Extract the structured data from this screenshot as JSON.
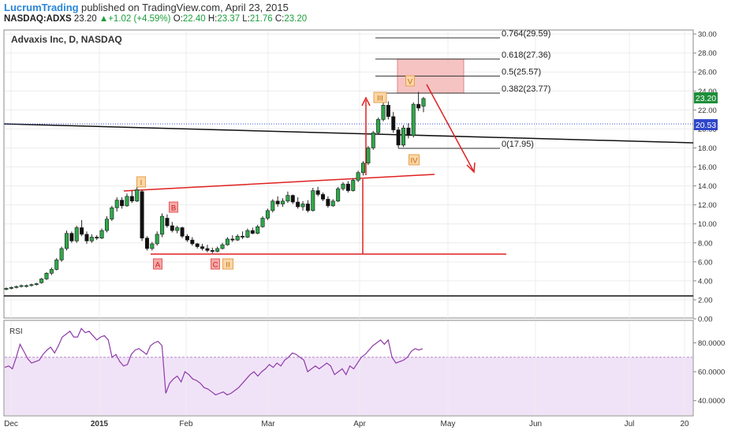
{
  "header": {
    "brand": "LucrumTrading",
    "published": "published on TradingView.com, April 23, 2015",
    "symbol": "NASDAQ:ADXS",
    "last": "23.20",
    "change": "+1.02 (+4.59%)",
    "open_label": "O:",
    "open": "22.40",
    "high_label": "H:",
    "high": "23.37",
    "low_label": "L:",
    "low": "21.76",
    "close_label": "C:",
    "close": "23.20"
  },
  "chart_data": {
    "type": "candlestick",
    "title": "Advaxis Inc, D, NASDAQ",
    "y_ticks": [
      "30.00",
      "28.00",
      "26.00",
      "24.00",
      "22.00",
      "20.00",
      "18.00",
      "16.00",
      "14.00",
      "12.00",
      "10.00",
      "8.00",
      "6.00",
      "4.00",
      "2.00",
      "0.00"
    ],
    "ylim": [
      0,
      30.5
    ],
    "x_ticks": [
      "Dec",
      "2015",
      "Feb",
      "Mar",
      "Apr",
      "May",
      "Jun",
      "Jul",
      "20"
    ],
    "last_price_label": "23.20",
    "hline_label": "20.53",
    "fib_levels": [
      {
        "label": "0.764(29.59)",
        "value": 29.59
      },
      {
        "label": "0.618(27.36)",
        "value": 27.36
      },
      {
        "label": "0.5(25.57)",
        "value": 25.57
      },
      {
        "label": "0.382(23.77)",
        "value": 23.77
      },
      {
        "label": "0(17.95)",
        "value": 17.95
      }
    ],
    "wave_labels": [
      "I",
      "II",
      "III",
      "IV",
      "V",
      "A",
      "B",
      "C"
    ],
    "candles": [
      [
        3.1,
        3.3,
        3.0,
        3.2
      ],
      [
        3.2,
        3.4,
        3.1,
        3.3
      ],
      [
        3.3,
        3.5,
        3.2,
        3.4
      ],
      [
        3.4,
        3.6,
        3.3,
        3.5
      ],
      [
        3.4,
        3.6,
        3.3,
        3.5
      ],
      [
        3.5,
        3.7,
        3.4,
        3.6
      ],
      [
        3.6,
        3.8,
        3.5,
        3.7
      ],
      [
        3.8,
        4.3,
        3.7,
        4.2
      ],
      [
        4.2,
        4.9,
        4.1,
        4.8
      ],
      [
        4.8,
        5.4,
        4.6,
        5.2
      ],
      [
        5.2,
        6.4,
        5.1,
        6.2
      ],
      [
        6.2,
        7.6,
        6.0,
        7.4
      ],
      [
        7.4,
        9.3,
        7.2,
        9.0
      ],
      [
        9.0,
        9.2,
        8.0,
        8.2
      ],
      [
        8.2,
        9.8,
        8.0,
        9.6
      ],
      [
        9.6,
        10.4,
        8.7,
        8.9
      ],
      [
        8.9,
        9.2,
        7.9,
        8.2
      ],
      [
        8.2,
        8.9,
        8.0,
        8.6
      ],
      [
        8.6,
        8.8,
        8.3,
        8.5
      ],
      [
        8.5,
        9.5,
        8.4,
        9.3
      ],
      [
        9.3,
        10.8,
        9.1,
        10.5
      ],
      [
        10.5,
        11.9,
        10.3,
        11.7
      ],
      [
        11.7,
        12.8,
        11.3,
        12.5
      ],
      [
        12.5,
        12.8,
        11.6,
        11.9
      ],
      [
        11.9,
        13.2,
        11.8,
        12.9
      ],
      [
        12.9,
        13.5,
        12.2,
        12.4
      ],
      [
        12.4,
        13.9,
        12.3,
        13.6
      ],
      [
        13.4,
        13.6,
        8.2,
        8.5
      ],
      [
        8.5,
        8.7,
        7.2,
        7.4
      ],
      [
        7.4,
        8.1,
        7.2,
        7.9
      ],
      [
        7.9,
        9.2,
        7.7,
        8.9
      ],
      [
        8.9,
        11.1,
        8.6,
        10.8
      ],
      [
        10.6,
        11.0,
        9.6,
        9.8
      ],
      [
        9.8,
        10.2,
        9.1,
        9.3
      ],
      [
        9.3,
        9.8,
        9.0,
        9.6
      ],
      [
        9.6,
        9.7,
        8.5,
        8.7
      ],
      [
        8.7,
        8.9,
        8.1,
        8.3
      ],
      [
        8.3,
        8.6,
        7.7,
        7.9
      ],
      [
        7.9,
        8.0,
        7.4,
        7.6
      ],
      [
        7.6,
        7.9,
        7.2,
        7.4
      ],
      [
        7.4,
        7.8,
        7.0,
        7.2
      ],
      [
        7.2,
        7.5,
        6.9,
        7.1
      ],
      [
        7.1,
        7.6,
        7.0,
        7.4
      ],
      [
        7.4,
        8.0,
        7.3,
        7.8
      ],
      [
        7.8,
        8.6,
        7.7,
        8.4
      ],
      [
        8.4,
        8.8,
        8.1,
        8.3
      ],
      [
        8.3,
        8.9,
        8.2,
        8.7
      ],
      [
        8.7,
        9.2,
        8.4,
        8.6
      ],
      [
        8.6,
        9.5,
        8.5,
        9.3
      ],
      [
        9.3,
        9.6,
        8.9,
        9.0
      ],
      [
        9.0,
        9.9,
        8.9,
        9.7
      ],
      [
        9.7,
        10.8,
        9.6,
        10.6
      ],
      [
        10.6,
        11.6,
        10.4,
        11.4
      ],
      [
        11.4,
        12.6,
        11.2,
        12.4
      ],
      [
        12.4,
        12.9,
        11.8,
        12.1
      ],
      [
        12.1,
        12.7,
        11.8,
        12.4
      ],
      [
        12.4,
        13.4,
        12.2,
        13.0
      ],
      [
        13.0,
        13.1,
        12.1,
        12.3
      ],
      [
        12.3,
        12.8,
        11.6,
        11.8
      ],
      [
        11.8,
        12.4,
        11.4,
        12.1
      ],
      [
        12.1,
        12.5,
        11.2,
        11.4
      ],
      [
        11.4,
        13.8,
        11.3,
        13.5
      ],
      [
        13.5,
        13.9,
        12.9,
        13.1
      ],
      [
        13.1,
        13.3,
        12.4,
        12.6
      ],
      [
        12.6,
        12.9,
        11.7,
        11.9
      ],
      [
        11.9,
        12.6,
        11.8,
        12.4
      ],
      [
        12.4,
        13.9,
        12.3,
        13.7
      ],
      [
        13.7,
        14.4,
        13.5,
        14.2
      ],
      [
        14.2,
        14.5,
        13.3,
        13.5
      ],
      [
        13.5,
        14.8,
        13.4,
        14.6
      ],
      [
        14.6,
        15.6,
        14.4,
        15.4
      ],
      [
        15.4,
        16.6,
        15.1,
        16.4
      ],
      [
        16.4,
        18.2,
        16.2,
        18.0
      ],
      [
        18.0,
        19.8,
        17.8,
        19.6
      ],
      [
        19.6,
        21.2,
        19.4,
        21.0
      ],
      [
        21.0,
        22.8,
        20.8,
        22.5
      ],
      [
        22.5,
        22.9,
        21.0,
        21.3
      ],
      [
        21.3,
        21.8,
        19.6,
        19.9
      ],
      [
        19.9,
        20.2,
        18.0,
        18.3
      ],
      [
        18.3,
        20.4,
        18.1,
        20.1
      ],
      [
        20.1,
        20.6,
        19.0,
        19.3
      ],
      [
        19.3,
        22.8,
        19.1,
        22.6
      ],
      [
        22.6,
        23.9,
        21.9,
        22.2
      ],
      [
        22.4,
        23.37,
        21.76,
        23.2
      ]
    ],
    "rsi": {
      "label": "RSI",
      "ticks": [
        "80.0000",
        "60.0000",
        "40.0000"
      ],
      "ylim": [
        30,
        95
      ],
      "band": [
        30,
        70
      ],
      "values": [
        63,
        64,
        62,
        70,
        79,
        74,
        69,
        66,
        67,
        68,
        72,
        75,
        77,
        73,
        78,
        84,
        86,
        88,
        84,
        84,
        90,
        87,
        88,
        85,
        82,
        84,
        85,
        82,
        70,
        72,
        67,
        64,
        65,
        72,
        75,
        76,
        74,
        72,
        78,
        80,
        81,
        78,
        45,
        52,
        55,
        57,
        53,
        60,
        58,
        55,
        54,
        52,
        49,
        48,
        46,
        44,
        45,
        46,
        44,
        45,
        47,
        49,
        52,
        55,
        58,
        60,
        57,
        60,
        62,
        65,
        63,
        66,
        64,
        68,
        70,
        73,
        72,
        70,
        68,
        60,
        62,
        64,
        62,
        64,
        66,
        64,
        58,
        60,
        62,
        58,
        64,
        62,
        66,
        70,
        72,
        75,
        78,
        80,
        82,
        79,
        82,
        70,
        66,
        67,
        68,
        70,
        74,
        76,
        75,
        76
      ]
    }
  }
}
